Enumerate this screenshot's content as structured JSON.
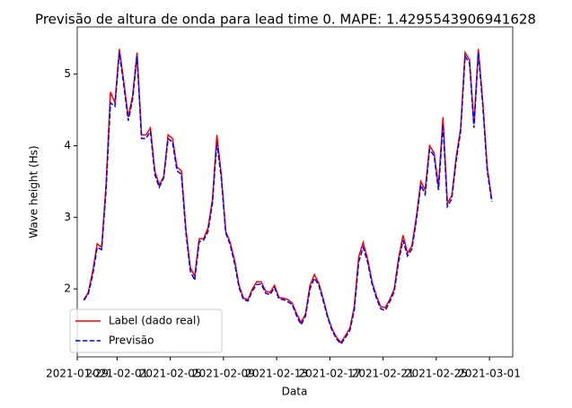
{
  "chart_data": {
    "type": "line",
    "title": "Previsão de altura de onda para lead time 0. MAPE: 1.4295543906941628",
    "x_label": "Data",
    "y_label": "Wave height (Hs)",
    "x": [
      "2021-01-29T12:00",
      "2021-01-29T20:00",
      "2021-01-30T04:00",
      "2021-01-30T12:00",
      "2021-01-30T20:00",
      "2021-01-31T04:00",
      "2021-01-31T12:00",
      "2021-01-31T20:00",
      "2021-02-01T04:00",
      "2021-02-01T12:00",
      "2021-02-01T20:00",
      "2021-02-02T04:00",
      "2021-02-02T12:00",
      "2021-02-02T20:00",
      "2021-02-03T04:00",
      "2021-02-03T12:00",
      "2021-02-03T20:00",
      "2021-02-04T04:00",
      "2021-02-04T12:00",
      "2021-02-04T20:00",
      "2021-02-05T04:00",
      "2021-02-05T12:00",
      "2021-02-05T20:00",
      "2021-02-06T04:00",
      "2021-02-06T12:00",
      "2021-02-06T20:00",
      "2021-02-07T04:00",
      "2021-02-07T12:00",
      "2021-02-07T20:00",
      "2021-02-08T04:00",
      "2021-02-08T12:00",
      "2021-02-08T20:00",
      "2021-02-09T04:00",
      "2021-02-09T12:00",
      "2021-02-09T20:00",
      "2021-02-10T04:00",
      "2021-02-10T12:00",
      "2021-02-10T20:00",
      "2021-02-11T04:00",
      "2021-02-11T12:00",
      "2021-02-11T20:00",
      "2021-02-12T04:00",
      "2021-02-12T12:00",
      "2021-02-12T20:00",
      "2021-02-13T04:00",
      "2021-02-13T12:00",
      "2021-02-13T20:00",
      "2021-02-14T04:00",
      "2021-02-14T12:00",
      "2021-02-14T20:00",
      "2021-02-15T04:00",
      "2021-02-15T12:00",
      "2021-02-15T20:00",
      "2021-02-16T04:00",
      "2021-02-16T12:00",
      "2021-02-16T20:00",
      "2021-02-17T04:00",
      "2021-02-17T12:00",
      "2021-02-17T20:00",
      "2021-02-18T04:00",
      "2021-02-18T12:00",
      "2021-02-18T20:00",
      "2021-02-19T04:00",
      "2021-02-19T12:00",
      "2021-02-19T20:00",
      "2021-02-20T04:00",
      "2021-02-20T12:00",
      "2021-02-20T20:00",
      "2021-02-21T04:00",
      "2021-02-21T12:00",
      "2021-02-21T20:00",
      "2021-02-22T04:00",
      "2021-02-22T12:00",
      "2021-02-22T20:00",
      "2021-02-23T04:00",
      "2021-02-23T12:00",
      "2021-02-23T20:00",
      "2021-02-24T04:00",
      "2021-02-24T12:00",
      "2021-02-24T20:00",
      "2021-02-25T04:00",
      "2021-02-25T12:00",
      "2021-02-25T20:00",
      "2021-02-26T04:00",
      "2021-02-26T12:00",
      "2021-02-26T20:00",
      "2021-02-27T04:00",
      "2021-02-27T12:00",
      "2021-02-27T20:00",
      "2021-02-28T04:00",
      "2021-02-28T12:00",
      "2021-02-28T20:00",
      "2021-03-01T04:00"
    ],
    "series": [
      {
        "name": "Label (dado real)",
        "color": "#ff0000",
        "dash": "solid",
        "values": [
          1.85,
          1.95,
          2.25,
          2.63,
          2.58,
          3.45,
          4.75,
          4.6,
          5.35,
          4.9,
          4.4,
          4.7,
          5.3,
          4.15,
          4.15,
          4.25,
          3.65,
          3.45,
          3.57,
          4.15,
          4.1,
          3.7,
          3.65,
          2.85,
          2.3,
          2.18,
          2.7,
          2.7,
          2.85,
          3.25,
          4.15,
          3.6,
          2.8,
          2.65,
          2.4,
          2.05,
          1.87,
          1.85,
          2.0,
          2.1,
          2.1,
          1.97,
          1.95,
          2.05,
          1.88,
          1.87,
          1.85,
          1.8,
          1.65,
          1.53,
          1.65,
          2.05,
          2.2,
          2.08,
          1.86,
          1.62,
          1.44,
          1.32,
          1.25,
          1.35,
          1.45,
          1.75,
          2.45,
          2.65,
          2.42,
          2.1,
          1.9,
          1.75,
          1.74,
          1.85,
          2.0,
          2.43,
          2.75,
          2.5,
          2.6,
          3.0,
          3.5,
          3.38,
          4.0,
          3.9,
          3.43,
          4.4,
          3.2,
          3.3,
          3.85,
          4.25,
          5.3,
          5.2,
          4.3,
          5.35,
          4.6,
          3.7,
          3.25
        ]
      },
      {
        "name": "Previsão",
        "color": "#0000ff",
        "dash": "dashed",
        "values": [
          1.84,
          1.93,
          2.2,
          2.58,
          2.55,
          3.38,
          4.6,
          4.55,
          5.3,
          4.85,
          4.35,
          4.65,
          5.25,
          4.1,
          4.1,
          4.2,
          3.6,
          3.42,
          3.55,
          4.1,
          4.05,
          3.65,
          3.6,
          2.8,
          2.25,
          2.12,
          2.66,
          2.68,
          2.8,
          3.2,
          4.05,
          3.55,
          2.78,
          2.62,
          2.36,
          2.02,
          1.85,
          1.83,
          1.97,
          2.06,
          2.07,
          1.94,
          1.92,
          2.02,
          1.86,
          1.85,
          1.82,
          1.78,
          1.62,
          1.5,
          1.62,
          2.0,
          2.15,
          2.05,
          1.83,
          1.6,
          1.42,
          1.3,
          1.23,
          1.32,
          1.42,
          1.7,
          2.38,
          2.58,
          2.38,
          2.07,
          1.87,
          1.72,
          1.7,
          1.82,
          1.96,
          2.38,
          2.68,
          2.46,
          2.56,
          2.95,
          3.45,
          3.32,
          3.95,
          3.86,
          3.38,
          4.3,
          3.15,
          3.26,
          3.8,
          4.2,
          5.25,
          5.15,
          4.25,
          5.3,
          4.55,
          3.65,
          3.22
        ]
      }
    ],
    "xlim": [
      "2021-01-29",
      "2021-03-02T18:00"
    ],
    "xticks": [
      "2021-01-29",
      "2021-02-01",
      "2021-02-05",
      "2021-02-09",
      "2021-02-13",
      "2021-02-17",
      "2021-02-21",
      "2021-02-25",
      "2021-03-01"
    ],
    "ylim": [
      1.05,
      5.66
    ],
    "yticks": [
      2,
      3,
      4,
      5
    ],
    "grid": false,
    "legend": "lower left"
  }
}
